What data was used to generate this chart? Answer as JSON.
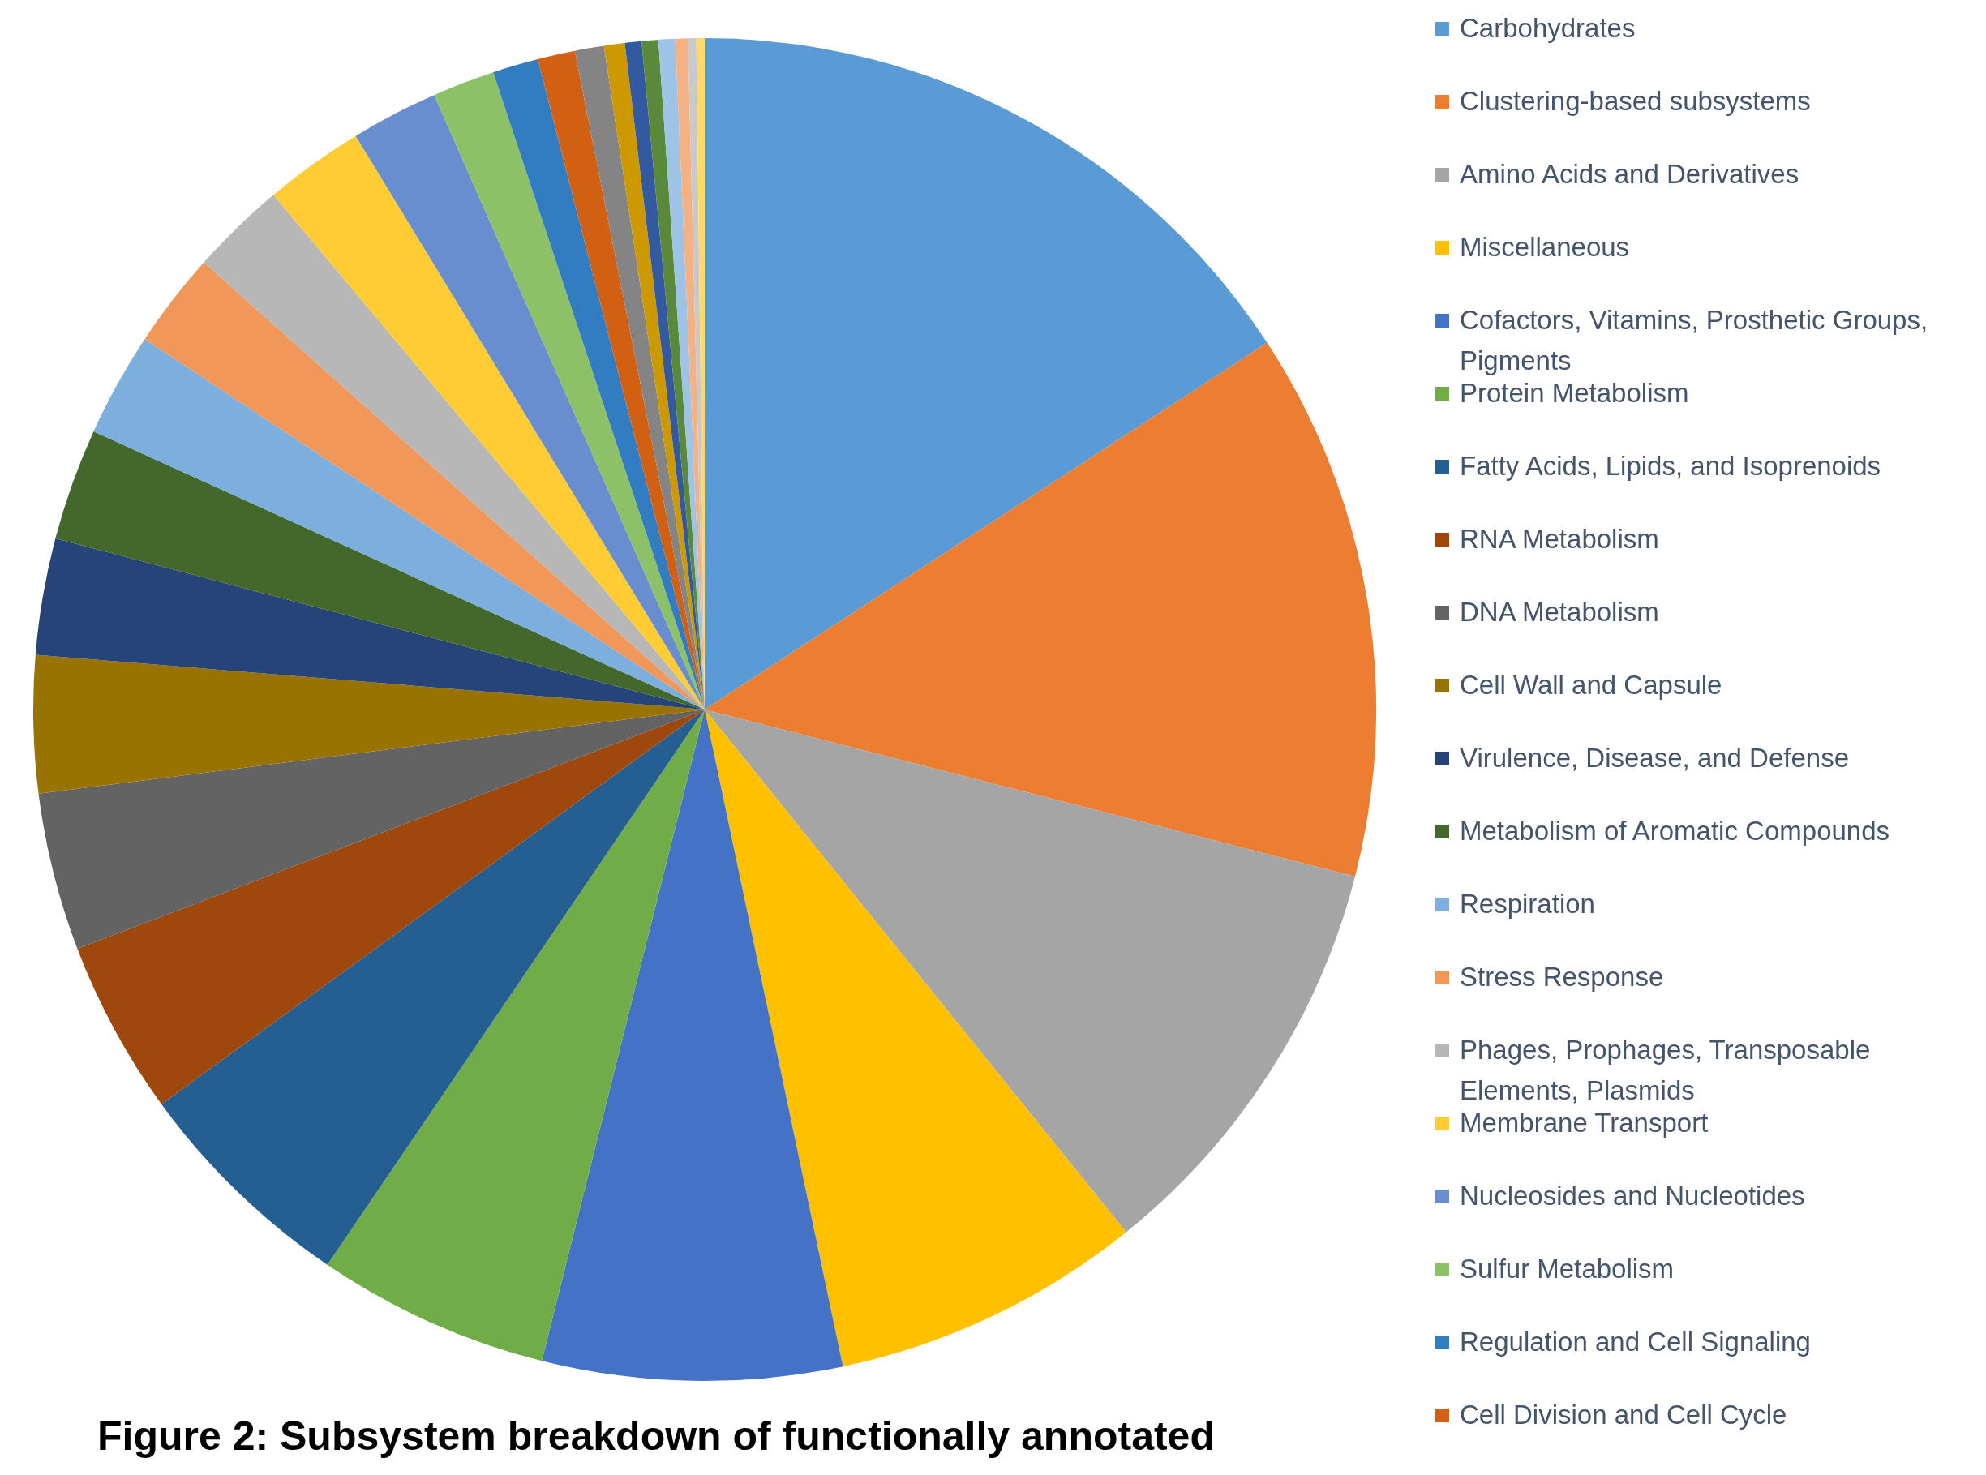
{
  "chart_data": {
    "type": "pie",
    "title": "Figure 2: Subsystem breakdown of functionally annotated",
    "legend": "right",
    "categories": [
      "Carbohydrates",
      "Clustering-based subsystems",
      "Amino Acids and Derivatives",
      "Miscellaneous",
      "Cofactors, Vitamins, Prosthetic Groups, Pigments",
      "Protein Metabolism",
      "Fatty Acids, Lipids, and Isoprenoids",
      "RNA Metabolism",
      "DNA Metabolism",
      "Cell Wall and Capsule",
      "Virulence, Disease, and Defense",
      "Metabolism of Aromatic Compounds",
      "Respiration",
      "Stress Response",
      "Phages, Prophages, Transposable Elements, Plasmids",
      "Membrane Transport",
      "Nucleosides and Nucleotides",
      "Sulfur Metabolism",
      "Regulation and Cell Signaling",
      "Cell Division and Cell Cycle",
      null,
      null,
      null,
      null,
      null,
      null,
      null,
      null
    ],
    "values": [
      15.8,
      13.2,
      10.2,
      7.5,
      7.2,
      5.6,
      5.5,
      4.2,
      3.8,
      3.3,
      2.8,
      2.7,
      2.5,
      2.3,
      2.3,
      2.4,
      2.1,
      1.5,
      1.1,
      0.9,
      0.7,
      0.5,
      0.4,
      0.4,
      0.4,
      0.3,
      0.2,
      0.2
    ],
    "colors": [
      "#5b9bd5",
      "#ed7d31",
      "#a5a5a5",
      "#ffc000",
      "#4472c4",
      "#70ad47",
      "#255e91",
      "#9e480e",
      "#636363",
      "#997300",
      "#264478",
      "#43682b",
      "#7cafdd",
      "#f1975a",
      "#b7b7b7",
      "#ffcd33",
      "#698ed0",
      "#8cc168",
      "#327dc2",
      "#d26012",
      "#848484",
      "#cc9a00",
      "#335aa1",
      "#5a8a39",
      "#9dc3e6",
      "#f4b183",
      "#c9c9c9",
      "#ffd966"
    ]
  }
}
